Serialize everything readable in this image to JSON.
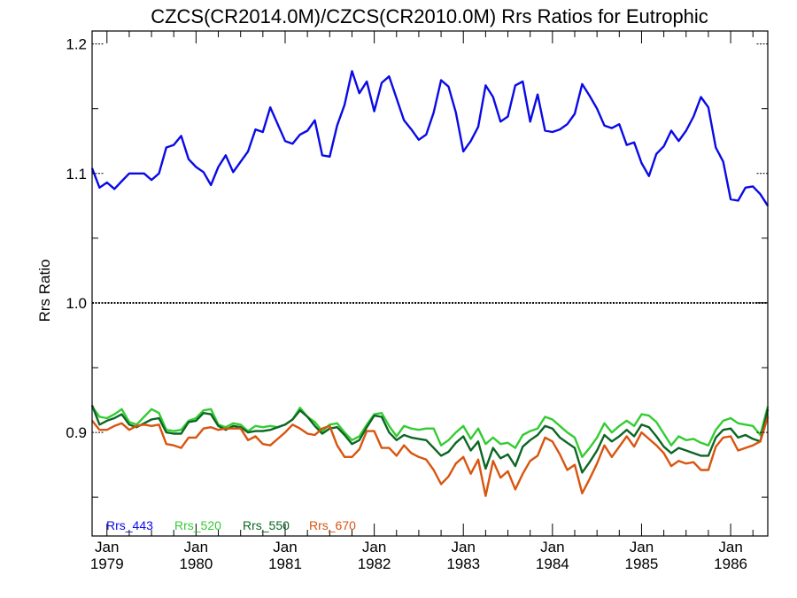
{
  "chart_data": {
    "type": "line",
    "title": "CZCS(CR2014.0M)/CZCS(CR2010.0M)  Rrs Ratios for Eutrophic",
    "ylabel": "Rrs Ratio",
    "xlabel": "",
    "ylim": [
      0.82,
      1.21
    ],
    "y_ticks": [
      0.9,
      1.0,
      1.1,
      1.2
    ],
    "y_tick_labels": [
      "0.9",
      "1.0",
      "1.1",
      "1.2"
    ],
    "x_start": "1978-11",
    "x_end": "1986-06",
    "x_ticks": [
      {
        "date": "1979-01",
        "label_top": "Jan",
        "label_bottom": "1979"
      },
      {
        "date": "1980-01",
        "label_top": "Jan",
        "label_bottom": "1980"
      },
      {
        "date": "1981-01",
        "label_top": "Jan",
        "label_bottom": "1981"
      },
      {
        "date": "1982-01",
        "label_top": "Jan",
        "label_bottom": "1982"
      },
      {
        "date": "1983-01",
        "label_top": "Jan",
        "label_bottom": "1983"
      },
      {
        "date": "1984-01",
        "label_top": "Jan",
        "label_bottom": "1984"
      },
      {
        "date": "1985-01",
        "label_top": "Jan",
        "label_bottom": "1985"
      },
      {
        "date": "1986-01",
        "label_top": "Jan",
        "label_bottom": "1986"
      }
    ],
    "reference_line": 1.0,
    "legend_position": "bottom-left",
    "series": [
      {
        "name": "Rrs_443",
        "color": "#0a0ae6",
        "values": [
          1.104,
          1.089,
          1.093,
          1.088,
          1.094,
          1.1,
          1.1,
          1.1,
          1.095,
          1.1,
          1.12,
          1.122,
          1.129,
          1.111,
          1.105,
          1.101,
          1.091,
          1.105,
          1.114,
          1.101,
          1.109,
          1.117,
          1.134,
          1.132,
          1.151,
          1.138,
          1.125,
          1.123,
          1.13,
          1.133,
          1.141,
          1.114,
          1.113,
          1.137,
          1.153,
          1.179,
          1.162,
          1.171,
          1.148,
          1.17,
          1.175,
          1.158,
          1.141,
          1.134,
          1.126,
          1.13,
          1.147,
          1.172,
          1.167,
          1.147,
          1.117,
          1.125,
          1.136,
          1.168,
          1.159,
          1.14,
          1.144,
          1.168,
          1.171,
          1.14,
          1.161,
          1.133,
          1.132,
          1.134,
          1.138,
          1.146,
          1.169,
          1.16,
          1.15,
          1.137,
          1.135,
          1.138,
          1.122,
          1.124,
          1.108,
          1.098,
          1.115,
          1.121,
          1.133,
          1.125,
          1.133,
          1.144,
          1.159,
          1.151,
          1.12,
          1.109,
          1.08,
          1.079,
          1.089,
          1.09,
          1.084,
          1.075
        ]
      },
      {
        "name": "Rrs_520",
        "color": "#33cc33",
        "values": [
          0.92,
          0.912,
          0.911,
          0.914,
          0.918,
          0.908,
          0.906,
          0.912,
          0.918,
          0.915,
          0.902,
          0.901,
          0.902,
          0.909,
          0.911,
          0.917,
          0.918,
          0.906,
          0.904,
          0.907,
          0.906,
          0.901,
          0.905,
          0.904,
          0.905,
          0.904,
          0.906,
          0.91,
          0.919,
          0.912,
          0.908,
          0.901,
          0.906,
          0.907,
          0.9,
          0.894,
          0.897,
          0.906,
          0.914,
          0.915,
          0.905,
          0.897,
          0.905,
          0.903,
          0.902,
          0.903,
          0.903,
          0.89,
          0.894,
          0.9,
          0.905,
          0.895,
          0.903,
          0.891,
          0.896,
          0.891,
          0.892,
          0.888,
          0.898,
          0.901,
          0.903,
          0.912,
          0.91,
          0.905,
          0.9,
          0.896,
          0.881,
          0.888,
          0.896,
          0.907,
          0.9,
          0.905,
          0.909,
          0.905,
          0.914,
          0.913,
          0.908,
          0.899,
          0.89,
          0.897,
          0.894,
          0.895,
          0.892,
          0.89,
          0.902,
          0.909,
          0.911,
          0.907,
          0.906,
          0.905,
          0.898,
          0.92
        ]
      },
      {
        "name": "Rrs_550",
        "color": "#0b6623",
        "values": [
          0.921,
          0.906,
          0.909,
          0.911,
          0.914,
          0.906,
          0.904,
          0.907,
          0.91,
          0.911,
          0.9,
          0.899,
          0.899,
          0.908,
          0.909,
          0.915,
          0.914,
          0.905,
          0.902,
          0.905,
          0.904,
          0.9,
          0.901,
          0.901,
          0.902,
          0.904,
          0.906,
          0.91,
          0.917,
          0.912,
          0.905,
          0.899,
          0.903,
          0.904,
          0.898,
          0.891,
          0.894,
          0.904,
          0.913,
          0.912,
          0.9,
          0.894,
          0.898,
          0.896,
          0.895,
          0.894,
          0.888,
          0.882,
          0.885,
          0.892,
          0.897,
          0.886,
          0.893,
          0.872,
          0.888,
          0.88,
          0.883,
          0.874,
          0.889,
          0.894,
          0.898,
          0.905,
          0.903,
          0.896,
          0.892,
          0.888,
          0.869,
          0.877,
          0.886,
          0.898,
          0.893,
          0.897,
          0.902,
          0.897,
          0.906,
          0.904,
          0.897,
          0.889,
          0.884,
          0.888,
          0.886,
          0.884,
          0.882,
          0.882,
          0.896,
          0.902,
          0.903,
          0.896,
          0.898,
          0.895,
          0.893,
          0.918
        ]
      },
      {
        "name": "Rrs_670",
        "color": "#d9540f",
        "values": [
          0.909,
          0.902,
          0.902,
          0.905,
          0.907,
          0.902,
          0.905,
          0.906,
          0.905,
          0.906,
          0.891,
          0.89,
          0.888,
          0.896,
          0.896,
          0.903,
          0.904,
          0.902,
          0.903,
          0.903,
          0.903,
          0.894,
          0.897,
          0.891,
          0.89,
          0.895,
          0.9,
          0.906,
          0.903,
          0.899,
          0.898,
          0.903,
          0.905,
          0.89,
          0.881,
          0.881,
          0.887,
          0.901,
          0.901,
          0.888,
          0.888,
          0.882,
          0.89,
          0.884,
          0.881,
          0.879,
          0.871,
          0.86,
          0.866,
          0.876,
          0.881,
          0.868,
          0.879,
          0.851,
          0.878,
          0.865,
          0.87,
          0.856,
          0.868,
          0.878,
          0.882,
          0.896,
          0.893,
          0.883,
          0.871,
          0.875,
          0.853,
          0.864,
          0.876,
          0.89,
          0.881,
          0.889,
          0.897,
          0.889,
          0.9,
          0.895,
          0.89,
          0.884,
          0.874,
          0.878,
          0.876,
          0.877,
          0.871,
          0.871,
          0.889,
          0.896,
          0.897,
          0.886,
          0.888,
          0.89,
          0.893,
          0.912
        ]
      }
    ]
  }
}
